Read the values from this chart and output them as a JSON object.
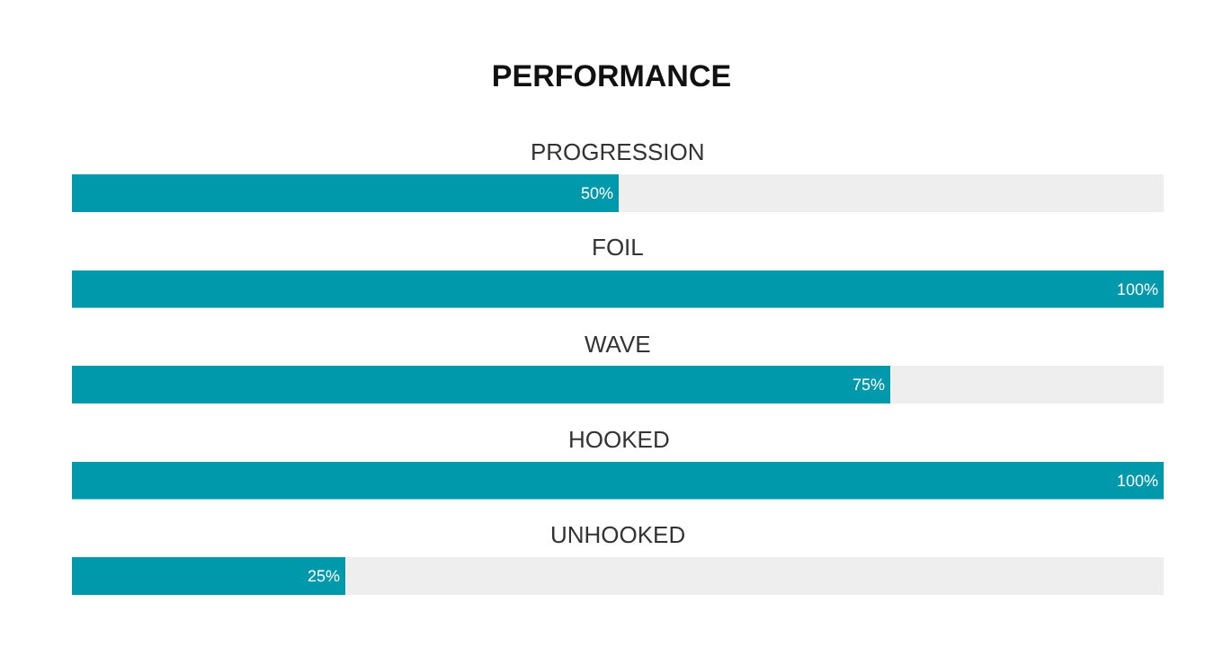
{
  "chart_data": {
    "type": "bar",
    "title": "PERFORMANCE",
    "orientation": "horizontal",
    "categories": [
      "PROGRESSION",
      "FOIL",
      "WAVE",
      "HOOKED",
      "UNHOOKED"
    ],
    "values": [
      50,
      100,
      75,
      100,
      25
    ],
    "value_labels": [
      "50%",
      "100%",
      "75%",
      "100%",
      "25%"
    ],
    "color": "#0098ab",
    "xlim": [
      0,
      100
    ],
    "tick_labels": false,
    "grid": false
  }
}
